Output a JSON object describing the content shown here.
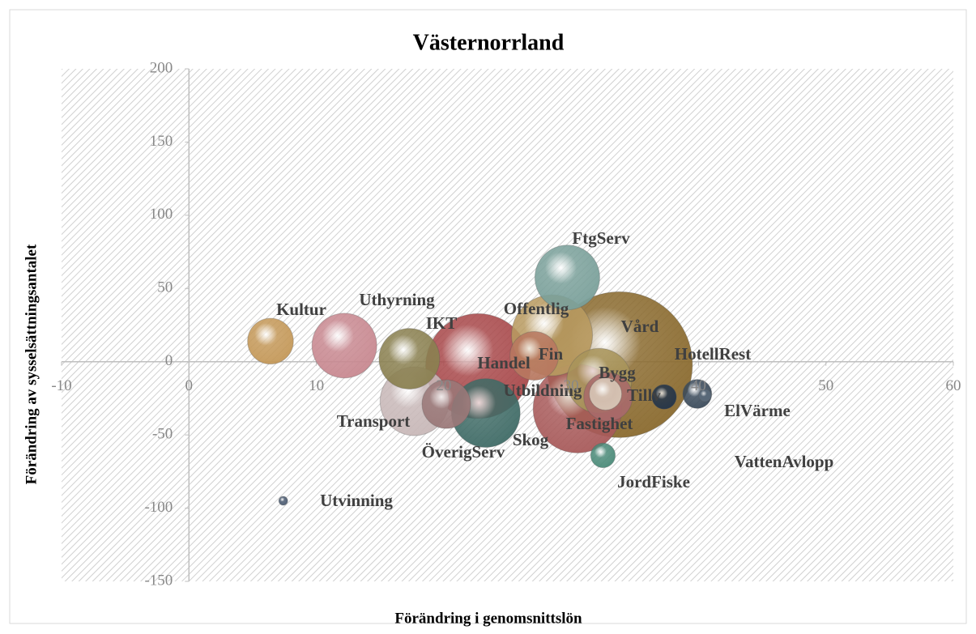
{
  "chart_data": {
    "type": "bubble",
    "title": "Västernorrland",
    "x_label": "Förändring i genomsnittslön",
    "y_label": "Förändring av sysselsättningsantalet",
    "xlim": [
      -10,
      60
    ],
    "xticks": [
      -10,
      0,
      10,
      20,
      30,
      40,
      50,
      60
    ],
    "ylim": [
      -150,
      200
    ],
    "yticks": [
      -150,
      -100,
      -50,
      0,
      50,
      100,
      150,
      200
    ],
    "points": [
      {
        "label": "Vård",
        "x": 33.8,
        "y": -2,
        "size": 81,
        "color": "#8a6a2e"
      },
      {
        "label": "Handel",
        "x": 22.7,
        "y": -3,
        "size": 42,
        "color": "#a8484a"
      },
      {
        "label": "Fastighet",
        "x": 30.5,
        "y": -32,
        "size": 30,
        "color": "#a85a5a"
      },
      {
        "label": "Offentlig",
        "x": 28.5,
        "y": 18,
        "size": 25,
        "color": "#b89a60"
      },
      {
        "label": "Skog",
        "x": 23.3,
        "y": -35,
        "size": 18,
        "color": "#3f6b66"
      },
      {
        "label": "Transport",
        "x": 17.7,
        "y": -27,
        "size": 18,
        "color": "#c8b8b8"
      },
      {
        "label": "Uthyrning",
        "x": 12.2,
        "y": 11,
        "size": 16,
        "color": "#c88890"
      },
      {
        "label": "FtgServ",
        "x": 29.7,
        "y": 57.5,
        "size": 16,
        "color": "#7aa09a"
      },
      {
        "label": "Bygg",
        "x": 32.2,
        "y": -13,
        "size": 16,
        "color": "#a8945a"
      },
      {
        "label": "IKT",
        "x": 17.3,
        "y": 2,
        "size": 14,
        "color": "#8a8050"
      },
      {
        "label": "ÖverigServ",
        "x": 20.2,
        "y": -29,
        "size": 9,
        "color": "#9a7878"
      },
      {
        "label": "Tillv",
        "x": 32.9,
        "y": -24,
        "size": 9,
        "color": "#a86a6a"
      },
      {
        "label": "Fin",
        "x": 27.1,
        "y": 4,
        "size": 9,
        "color": "#b87860"
      },
      {
        "label": "Kultur",
        "x": 6.4,
        "y": 14,
        "size": 8,
        "color": "#c49858"
      },
      {
        "label": "Utbildning",
        "x": 32.7,
        "y": -22,
        "size": 4,
        "color": "#d8c8b8"
      },
      {
        "label": "ElVärme",
        "x": 39.9,
        "y": -22,
        "size": 3.2,
        "color": "#3a4a5a"
      },
      {
        "label": "HotellRest",
        "x": 37.3,
        "y": -24,
        "size": 2.3,
        "color": "#22344a"
      },
      {
        "label": "JordFiske",
        "x": 32.5,
        "y": -64,
        "size": 2.3,
        "color": "#4a8a78"
      },
      {
        "label": "VattenAvlopp",
        "x": 40.5,
        "y": -23,
        "size": 0.6,
        "color": "#5a6a7a"
      },
      {
        "label": "Utvinning",
        "x": 7.4,
        "y": -95,
        "size": 0.3,
        "color": "#4a5a70"
      }
    ]
  }
}
